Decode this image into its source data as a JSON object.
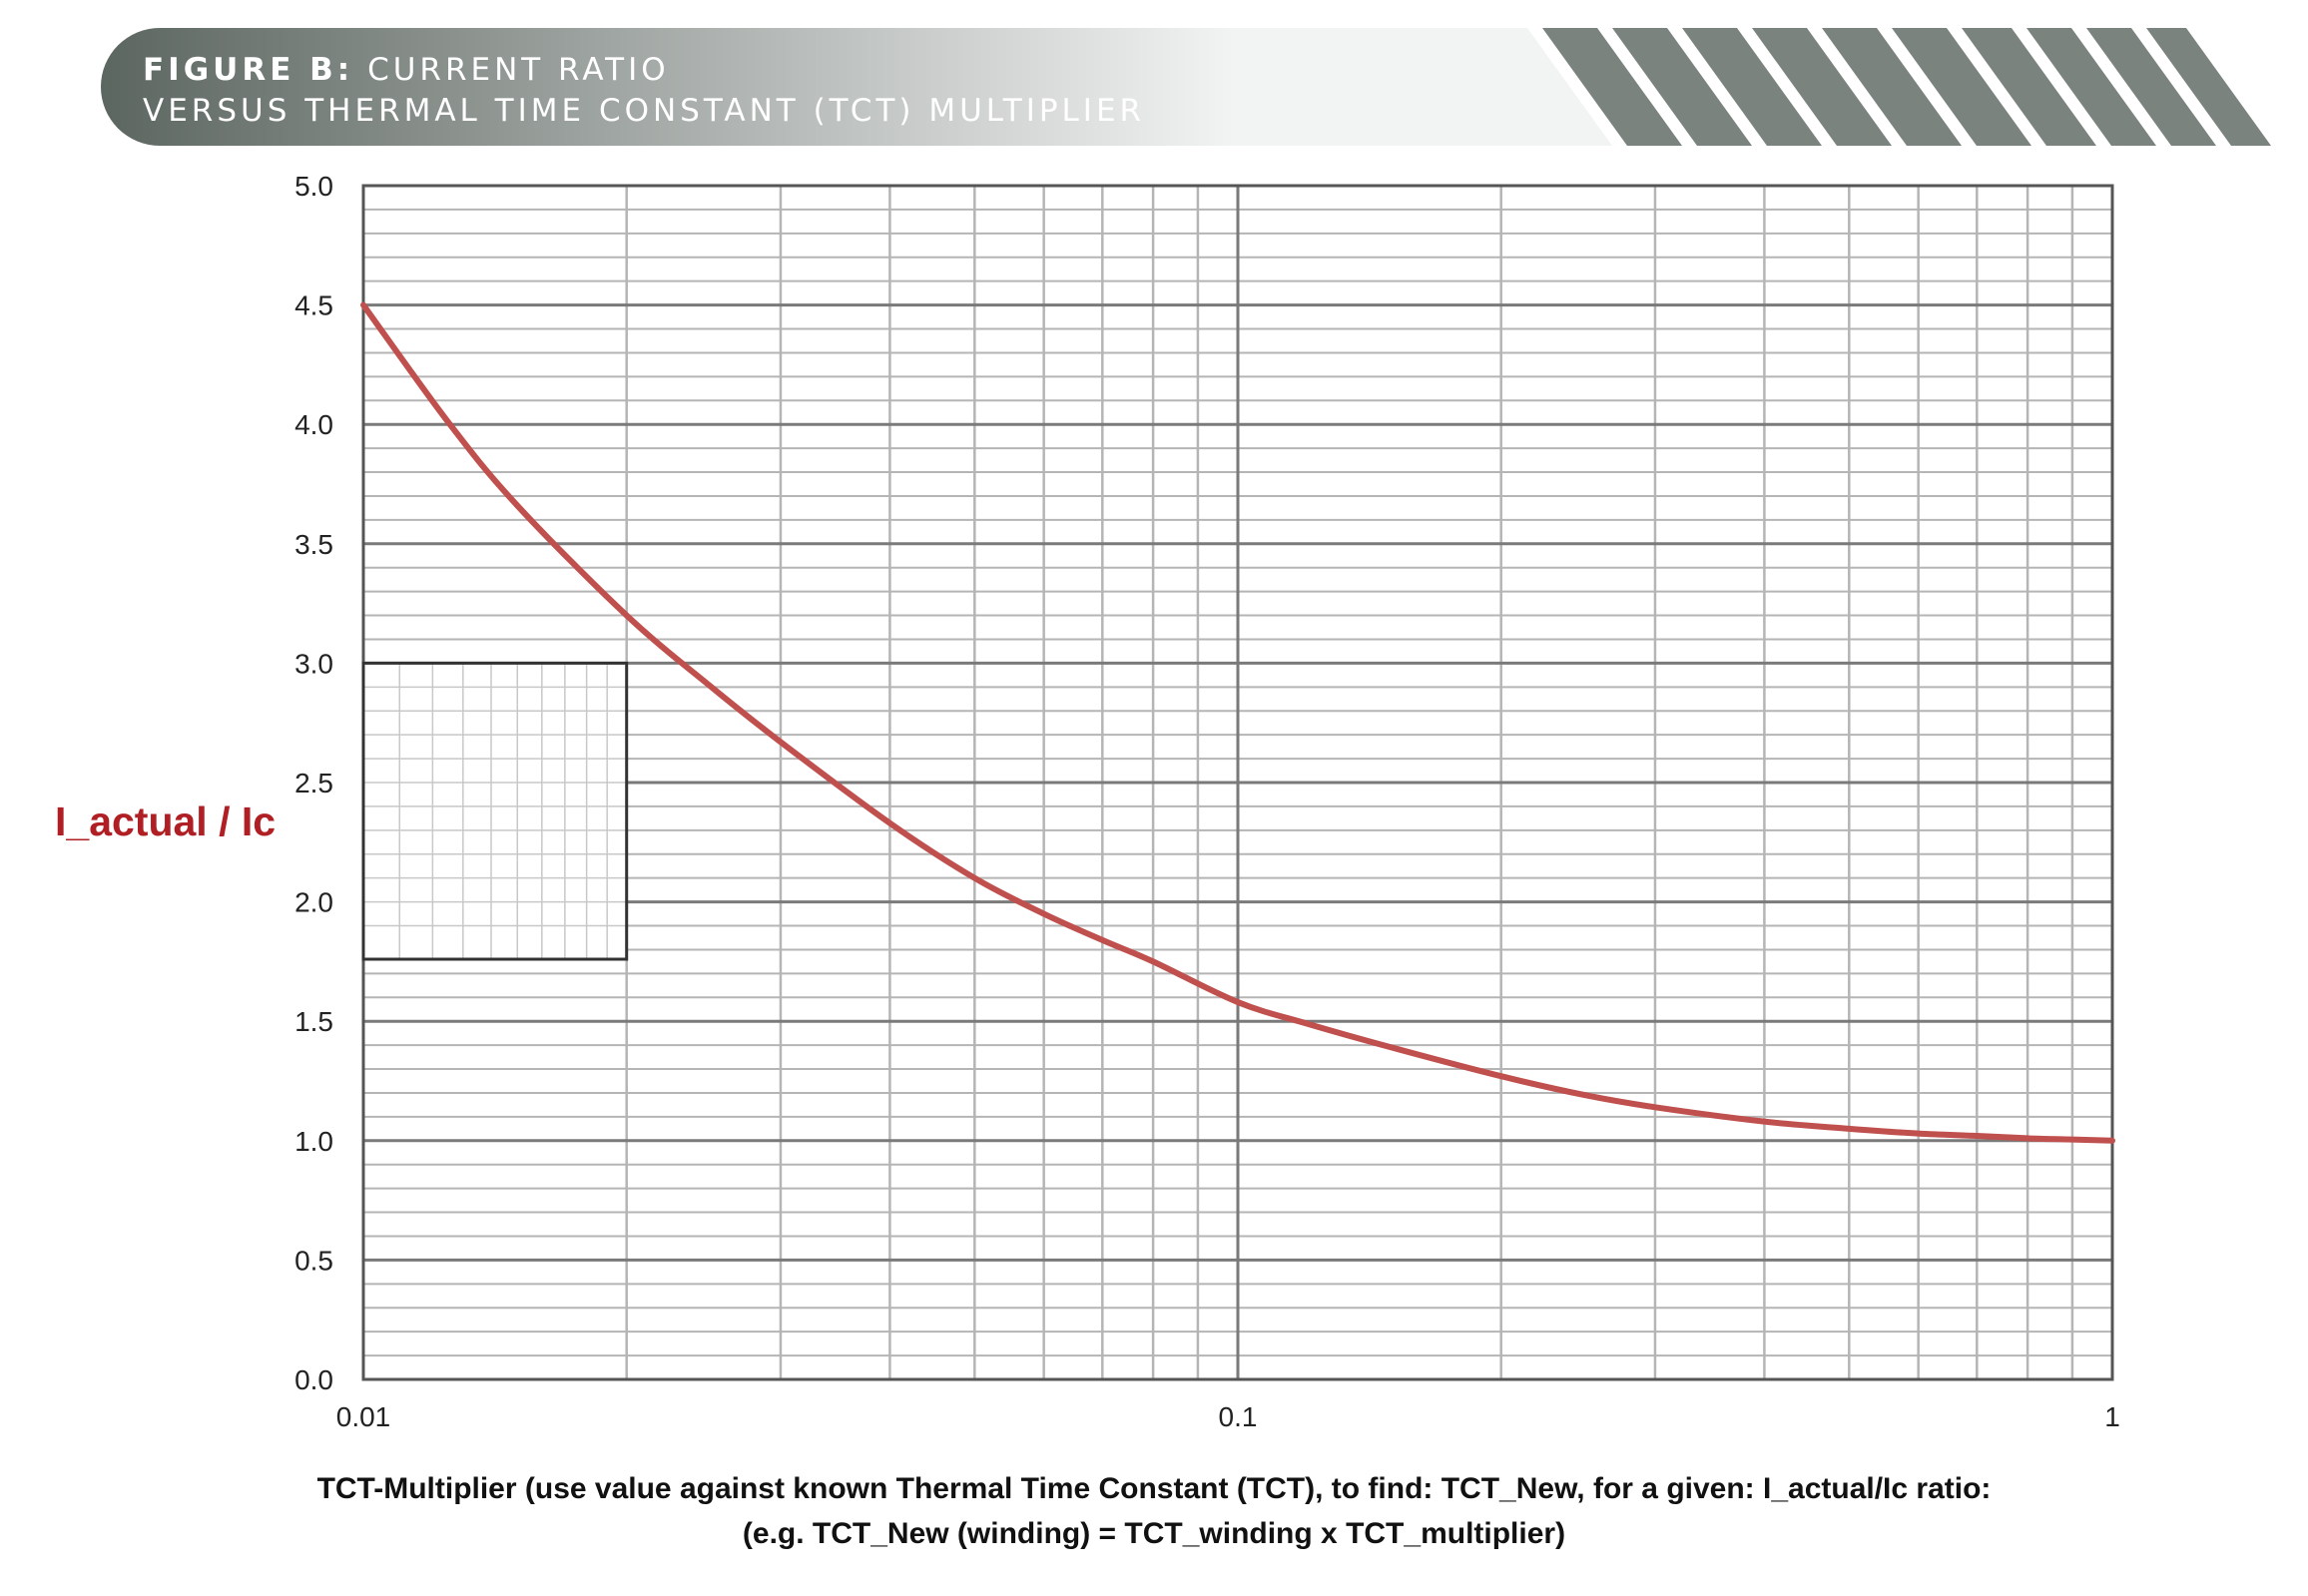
{
  "header": {
    "figure_label": "FIGURE B:",
    "title_line1": "CURRENT RATIO",
    "title_line2": "VERSUS THERMAL TIME CONSTANT (TCT) MULTIPLIER"
  },
  "colors": {
    "banner_dark": "#5c6660",
    "banner_light": "#f2f3f3",
    "curve": "#c0504d",
    "axis_label": "#b01f24",
    "grid_major": "#7a7a7a",
    "grid_minor": "#b5b5b5"
  },
  "chart_data": {
    "type": "line",
    "title": "CURRENT RATIO VERSUS THERMAL TIME CONSTANT (TCT) MULTIPLIER",
    "xlabel_line1": "TCT-Multiplier (use value against known Thermal Time Constant (TCT), to find: TCT_New, for a given: I_actual/Ic ratio:",
    "xlabel_line2": "(e.g.  TCT_New (winding) = TCT_winding x TCT_multiplier)",
    "ylabel": "I_actual / Ic",
    "x_scale": "log",
    "xlim": [
      0.01,
      1
    ],
    "ylim": [
      0,
      5
    ],
    "x_ticks": [
      "0.01",
      "0.1",
      "1"
    ],
    "y_ticks": [
      "0.0",
      "0.5",
      "1.0",
      "1.5",
      "2.0",
      "2.5",
      "3.0",
      "3.5",
      "4.0",
      "4.5",
      "5.0"
    ],
    "grid": true,
    "series": [
      {
        "x": [
          0.01,
          0.0125,
          0.015,
          0.02,
          0.025,
          0.03,
          0.04,
          0.05,
          0.06,
          0.07,
          0.08,
          0.1,
          0.12,
          0.15,
          0.2,
          0.25,
          0.3,
          0.4,
          0.5,
          0.6,
          0.7,
          0.8,
          0.9,
          1.0
        ],
        "y": [
          4.5,
          4.01,
          3.66,
          3.2,
          2.9,
          2.67,
          2.33,
          2.1,
          1.95,
          1.84,
          1.75,
          1.58,
          1.49,
          1.39,
          1.27,
          1.19,
          1.14,
          1.08,
          1.05,
          1.03,
          1.02,
          1.01,
          1.005,
          1.0
        ]
      }
    ],
    "inset_box": {
      "x_range": [
        0.01,
        0.02
      ],
      "y_range": [
        1.76,
        3.0
      ]
    }
  }
}
